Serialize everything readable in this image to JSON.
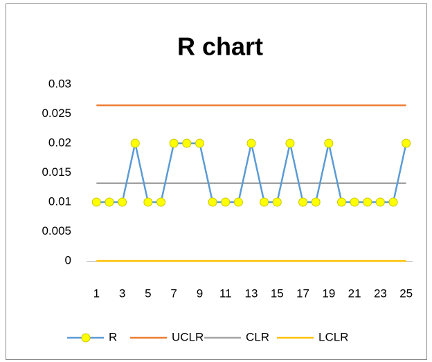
{
  "chart_data": {
    "type": "line",
    "title": "R chart",
    "categories": [
      1,
      null,
      3,
      null,
      5,
      null,
      7,
      null,
      9,
      null,
      11,
      null,
      13,
      null,
      15,
      null,
      17,
      null,
      19,
      null,
      21,
      null,
      23,
      null,
      25
    ],
    "series": [
      {
        "name": "R",
        "color": "#5b9bd5",
        "marker_color": "#ffff00",
        "values": [
          0.01,
          0.01,
          0.01,
          0.02,
          0.01,
          0.01,
          0.02,
          0.02,
          0.02,
          0.01,
          0.01,
          0.01,
          0.02,
          0.01,
          0.01,
          0.02,
          0.01,
          0.01,
          0.02,
          0.01,
          0.01,
          0.01,
          0.01,
          0.01,
          0.02
        ]
      },
      {
        "name": "UCLR",
        "color": "#ed7d31",
        "values": [
          0.02645,
          0.02645,
          0.02645,
          0.02645,
          0.02645,
          0.02645,
          0.02645,
          0.02645,
          0.02645,
          0.02645,
          0.02645,
          0.02645,
          0.02645,
          0.02645,
          0.02645,
          0.02645,
          0.02645,
          0.02645,
          0.02645,
          0.02645,
          0.02645,
          0.02645,
          0.02645,
          0.02645,
          0.02645
        ]
      },
      {
        "name": "CLR",
        "color": "#a5a5a5",
        "values": [
          0.0132,
          0.0132,
          0.0132,
          0.0132,
          0.0132,
          0.0132,
          0.0132,
          0.0132,
          0.0132,
          0.0132,
          0.0132,
          0.0132,
          0.0132,
          0.0132,
          0.0132,
          0.0132,
          0.0132,
          0.0132,
          0.0132,
          0.0132,
          0.0132,
          0.0132,
          0.0132,
          0.0132,
          0.0132
        ]
      },
      {
        "name": "LCLR",
        "color": "#ffc000",
        "values": [
          0,
          0,
          0,
          0,
          0,
          0,
          0,
          0,
          0,
          0,
          0,
          0,
          0,
          0,
          0,
          0,
          0,
          0,
          0,
          0,
          0,
          0,
          0,
          0,
          0
        ]
      }
    ],
    "ylim": [
      0,
      0.03
    ],
    "yticks": [
      0,
      0.005,
      0.01,
      0.015,
      0.02,
      0.025,
      0.03
    ],
    "grid": false,
    "legend": "bottom"
  }
}
